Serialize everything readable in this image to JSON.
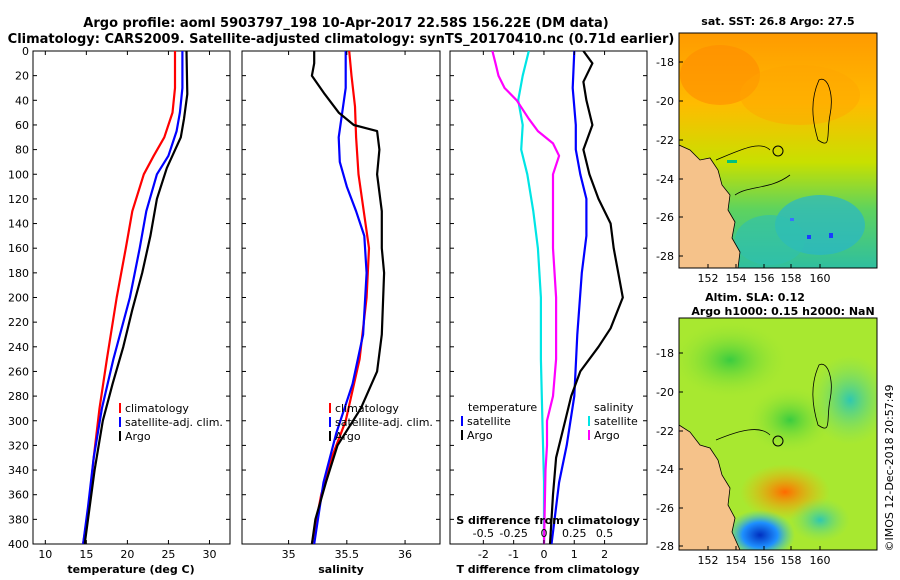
{
  "title": {
    "line1": "Argo profile: aoml 5903797_198 10-Apr-2017 22.58S 156.22E (DM data)",
    "line2": "Climatology: CARS2009. Satellite-adjusted climatology: synTS_20170410.nc (0.71d earlier)"
  },
  "colors": {
    "climatology": "#ff0000",
    "satellite": "#0000ff",
    "argo": "#000000",
    "temperature": "#ff00ff",
    "salinity": "#00e5e5"
  },
  "depth_ticks": [
    0,
    20,
    40,
    60,
    80,
    100,
    120,
    140,
    160,
    180,
    200,
    220,
    240,
    260,
    280,
    300,
    320,
    340,
    360,
    380,
    400
  ],
  "chart_data": [
    {
      "type": "line",
      "id": "temperature",
      "xlabel": "temperature (deg C)",
      "ylabel": "depth",
      "xlim": [
        8.5,
        32.5
      ],
      "ylim": [
        400,
        0
      ],
      "xticks": [
        10,
        15,
        20,
        25,
        30
      ],
      "legend": [
        "climatology",
        "satellite-adj. clim.",
        "Argo"
      ],
      "series": [
        {
          "name": "climatology",
          "color": "#ff0000",
          "points": [
            [
              25.8,
              0
            ],
            [
              25.8,
              30
            ],
            [
              25.5,
              50
            ],
            [
              24.5,
              70
            ],
            [
              23.2,
              85
            ],
            [
              22,
              100
            ],
            [
              20.6,
              130
            ],
            [
              19.8,
              160
            ],
            [
              18.7,
              200
            ],
            [
              17.5,
              250
            ],
            [
              16.6,
              290
            ],
            [
              15.9,
              330
            ],
            [
              15.3,
              370
            ],
            [
              14.6,
              400
            ]
          ]
        },
        {
          "name": "satellite-adj. clim.",
          "color": "#0000ff",
          "points": [
            [
              26.7,
              0
            ],
            [
              26.7,
              30
            ],
            [
              26.4,
              50
            ],
            [
              26,
              65
            ],
            [
              25,
              85
            ],
            [
              23.6,
              100
            ],
            [
              22.3,
              130
            ],
            [
              21.5,
              160
            ],
            [
              20.3,
              200
            ],
            [
              18.3,
              250
            ],
            [
              16.9,
              290
            ],
            [
              15.9,
              330
            ],
            [
              15.2,
              370
            ],
            [
              14.6,
              400
            ]
          ]
        },
        {
          "name": "Argo",
          "color": "#000000",
          "points": [
            [
              27.2,
              0
            ],
            [
              27.3,
              35
            ],
            [
              26.9,
              55
            ],
            [
              26.5,
              70
            ],
            [
              24.8,
              95
            ],
            [
              23.6,
              120
            ],
            [
              22.8,
              150
            ],
            [
              21.8,
              180
            ],
            [
              20.6,
              210
            ],
            [
              19.5,
              240
            ],
            [
              18.2,
              270
            ],
            [
              17,
              300
            ],
            [
              16,
              340
            ],
            [
              15.2,
              380
            ],
            [
              14.8,
              400
            ]
          ]
        }
      ]
    },
    {
      "type": "line",
      "id": "salinity",
      "xlabel": "salinity",
      "ylabel": "depth",
      "xlim": [
        34.6,
        36.3
      ],
      "ylim": [
        400,
        0
      ],
      "xticks": [
        35,
        35.5,
        36
      ],
      "xtick_labels": [
        "35",
        "35.5",
        "36"
      ],
      "legend": [
        "climatology",
        "satellite-adj. clim.",
        "Argo"
      ],
      "series": [
        {
          "name": "climatology",
          "color": "#ff0000",
          "points": [
            [
              35.52,
              0
            ],
            [
              35.54,
              20
            ],
            [
              35.57,
              45
            ],
            [
              35.58,
              70
            ],
            [
              35.6,
              100
            ],
            [
              35.63,
              120
            ],
            [
              35.66,
              140
            ],
            [
              35.69,
              160
            ],
            [
              35.67,
              200
            ],
            [
              35.61,
              250
            ],
            [
              35.49,
              300
            ],
            [
              35.37,
              330
            ],
            [
              35.28,
              360
            ],
            [
              35.2,
              400
            ]
          ]
        },
        {
          "name": "satellite-adj. clim.",
          "color": "#0000ff",
          "points": [
            [
              35.49,
              0
            ],
            [
              35.49,
              30
            ],
            [
              35.46,
              50
            ],
            [
              35.43,
              70
            ],
            [
              35.44,
              90
            ],
            [
              35.5,
              110
            ],
            [
              35.58,
              130
            ],
            [
              35.65,
              150
            ],
            [
              35.67,
              180
            ],
            [
              35.64,
              230
            ],
            [
              35.55,
              270
            ],
            [
              35.41,
              310
            ],
            [
              35.3,
              350
            ],
            [
              35.22,
              400
            ]
          ]
        },
        {
          "name": "Argo",
          "color": "#000000",
          "points": [
            [
              35.22,
              0
            ],
            [
              35.22,
              10
            ],
            [
              35.2,
              20
            ],
            [
              35.31,
              35
            ],
            [
              35.43,
              50
            ],
            [
              35.56,
              60
            ],
            [
              35.76,
              65
            ],
            [
              35.78,
              80
            ],
            [
              35.76,
              100
            ],
            [
              35.8,
              130
            ],
            [
              35.8,
              160
            ],
            [
              35.82,
              180
            ],
            [
              35.8,
              230
            ],
            [
              35.76,
              260
            ],
            [
              35.62,
              290
            ],
            [
              35.42,
              320
            ],
            [
              35.32,
              350
            ],
            [
              35.23,
              380
            ],
            [
              35.2,
              400
            ]
          ]
        }
      ]
    },
    {
      "type": "line",
      "id": "difference",
      "xlabel": "T difference from climatology",
      "ylabel": "depth",
      "xlim": [
        -3.1,
        3.4
      ],
      "ylim": [
        400,
        0
      ],
      "xticks": [
        -2,
        -1,
        0,
        1,
        2
      ],
      "xtick_labels": [
        "-2",
        "-1",
        "0",
        "1",
        "2"
      ],
      "top_axis_label": "S difference from climatology",
      "top_ticks": [
        -2,
        -1,
        0,
        1,
        2
      ],
      "top_tick_labels": [
        "-0.5",
        "-0.25",
        "0",
        "0.25",
        "0.5"
      ],
      "legend_temperature_header": "temperature",
      "legend_salinity_header": "salinity",
      "legend_temperature": [
        "satellite",
        "Argo"
      ],
      "legend_salinity": [
        "satellite",
        "Argo"
      ],
      "series": [
        {
          "name": "T satellite",
          "color": "#0000ff",
          "points": [
            [
              1,
              0
            ],
            [
              0.95,
              30
            ],
            [
              1.05,
              60
            ],
            [
              1.05,
              80
            ],
            [
              1.2,
              100
            ],
            [
              1.4,
              120
            ],
            [
              1.4,
              150
            ],
            [
              1.25,
              180
            ],
            [
              1.1,
              230
            ],
            [
              1,
              280
            ],
            [
              0.75,
              320
            ],
            [
              0.5,
              350
            ],
            [
              0.35,
              380
            ],
            [
              0.25,
              400
            ]
          ]
        },
        {
          "name": "T Argo",
          "color": "#000000",
          "points": [
            [
              1.3,
              0
            ],
            [
              1.6,
              10
            ],
            [
              1.3,
              25
            ],
            [
              1.4,
              40
            ],
            [
              1.6,
              60
            ],
            [
              1.3,
              80
            ],
            [
              1.5,
              100
            ],
            [
              1.8,
              120
            ],
            [
              2.2,
              140
            ],
            [
              2.3,
              160
            ],
            [
              2.6,
              200
            ],
            [
              2.2,
              225
            ],
            [
              1.8,
              240
            ],
            [
              1.2,
              260
            ],
            [
              0.9,
              280
            ],
            [
              0.7,
              300
            ],
            [
              0.4,
              330
            ],
            [
              0.3,
              360
            ],
            [
              0.2,
              400
            ]
          ]
        },
        {
          "name": "S satellite",
          "color": "#00e5e5",
          "points": [
            [
              -0.5,
              0
            ],
            [
              -0.7,
              20
            ],
            [
              -0.85,
              40
            ],
            [
              -0.7,
              60
            ],
            [
              -0.75,
              80
            ],
            [
              -0.55,
              100
            ],
            [
              -0.35,
              130
            ],
            [
              -0.2,
              160
            ],
            [
              -0.1,
              200
            ],
            [
              -0.1,
              250
            ],
            [
              -0.05,
              300
            ],
            [
              0,
              350
            ],
            [
              0,
              400
            ]
          ]
        },
        {
          "name": "S Argo",
          "color": "#ff00ff",
          "points": [
            [
              -1.7,
              0
            ],
            [
              -1.6,
              10
            ],
            [
              -1.5,
              20
            ],
            [
              -1.3,
              30
            ],
            [
              -0.9,
              40
            ],
            [
              -0.5,
              55
            ],
            [
              -0.2,
              65
            ],
            [
              0.3,
              75
            ],
            [
              0.5,
              85
            ],
            [
              0.3,
              100
            ],
            [
              0.3,
              130
            ],
            [
              0.3,
              160
            ],
            [
              0.4,
              200
            ],
            [
              0.4,
              250
            ],
            [
              0.3,
              280
            ],
            [
              0.1,
              300
            ],
            [
              0.1,
              320
            ],
            [
              0.05,
              340
            ],
            [
              0,
              400
            ]
          ]
        }
      ]
    }
  ],
  "map_sst": {
    "title": "sat. SST: 26.8 Argo: 27.5",
    "lat_ticks": [
      "-18",
      "-20",
      "-22",
      "-24",
      "-26",
      "-28"
    ],
    "lon_ticks": [
      "152",
      "154",
      "156",
      "158",
      "160"
    ]
  },
  "map_sla": {
    "title1": "Altim. SLA: 0.12",
    "title2": "Argo h1000: 0.15 h2000: NaN",
    "lat_ticks": [
      "-18",
      "-20",
      "-22",
      "-24",
      "-26",
      "-28"
    ],
    "lon_ticks": [
      "152",
      "154",
      "156",
      "158",
      "160"
    ]
  },
  "credit": "©IMOS 12-Dec-2018 20:57:49"
}
